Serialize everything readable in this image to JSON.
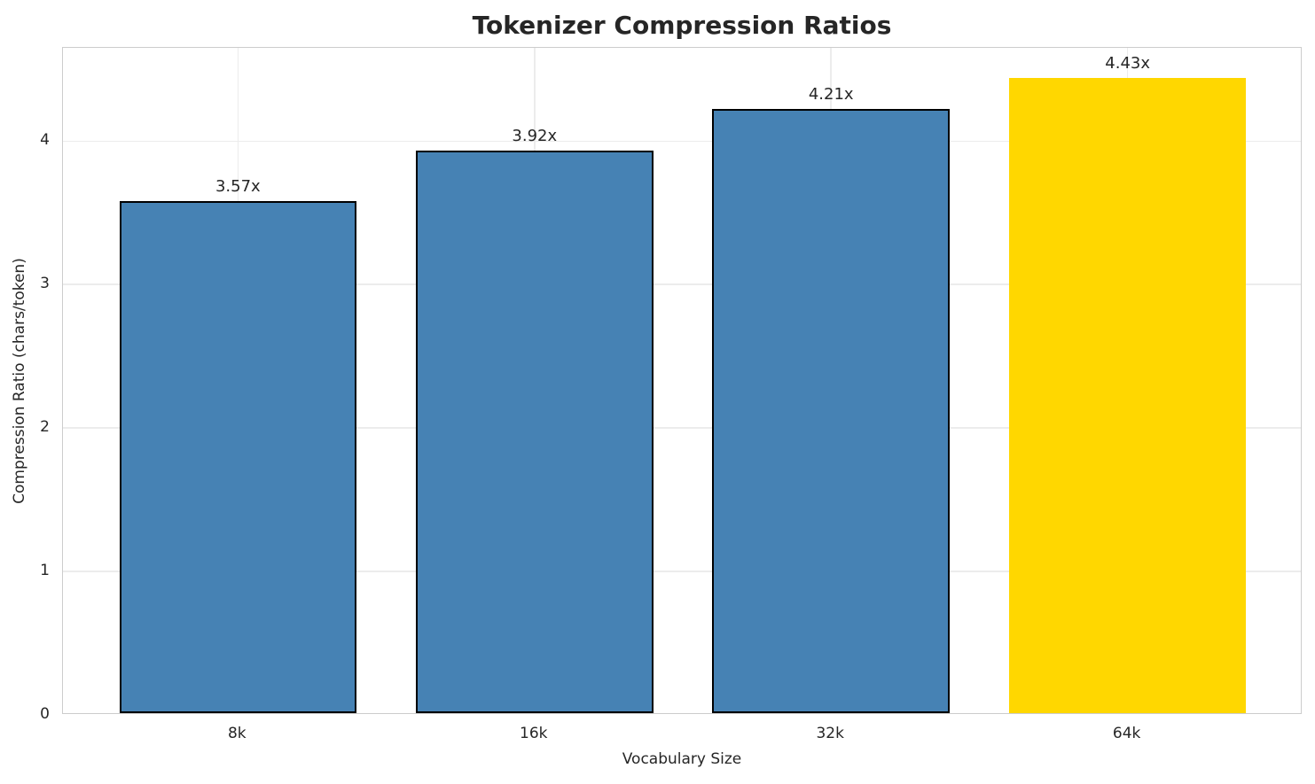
{
  "chart_data": {
    "type": "bar",
    "title": "Tokenizer Compression Ratios",
    "xlabel": "Vocabulary Size",
    "ylabel": "Compression Ratio (chars/token)",
    "categories": [
      "8k",
      "16k",
      "32k",
      "64k"
    ],
    "values": [
      3.57,
      3.92,
      4.21,
      4.43
    ],
    "value_labels": [
      "3.57x",
      "3.92x",
      "4.21x",
      "4.43x"
    ],
    "bar_colors": [
      "#4682B4",
      "#4682B4",
      "#4682B4",
      "#FFD700"
    ],
    "bar_edge_colors": [
      "#000000",
      "#000000",
      "#000000",
      "none"
    ],
    "highlighted_category": "64k",
    "yticks": [
      0,
      1,
      2,
      3,
      4
    ],
    "ylim": [
      0,
      4.65
    ],
    "grid": true,
    "legend": "none"
  },
  "colors": {
    "bar_default": "#4682B4",
    "bar_highlight": "#FFD700",
    "bar_edge": "#000000",
    "grid": "#ececec",
    "spine": "#cccccc",
    "text": "#262626"
  }
}
